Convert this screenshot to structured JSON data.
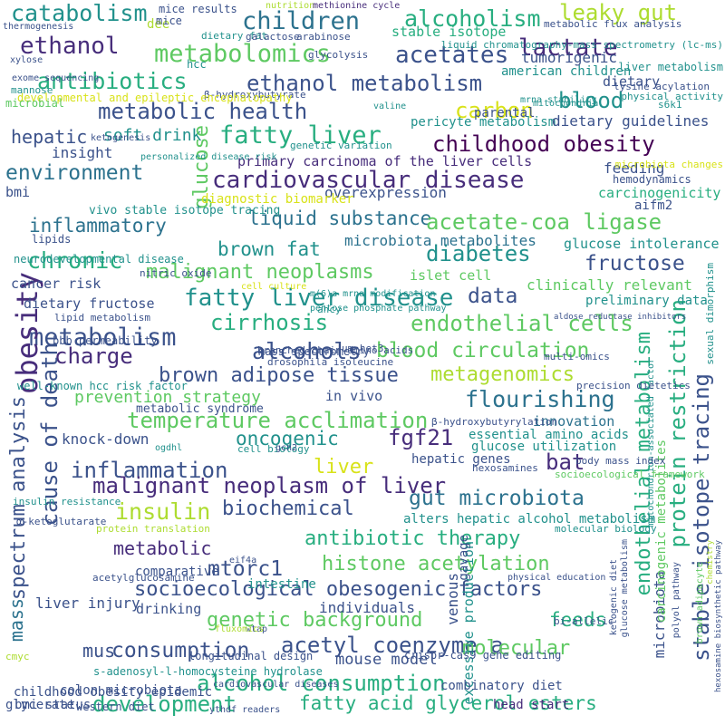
{
  "palette": {
    "yellow": "#d8e219",
    "lime": "#addc30",
    "green": "#5ec962",
    "emerald": "#28ae80",
    "teal": "#21918c",
    "blue": "#2c728e",
    "indigo": "#3b528b",
    "violet": "#472d7b",
    "deep": "#440154"
  },
  "words": [
    {
      "text": "catabolism",
      "color": "teal"
    },
    {
      "text": "mice results",
      "color": "indigo"
    },
    {
      "text": "nutrition",
      "color": "lime"
    },
    {
      "text": "methionine cycle",
      "color": "violet"
    },
    {
      "text": "children",
      "color": "blue"
    },
    {
      "text": "alcoholism",
      "color": "emerald"
    },
    {
      "text": "leaky gut",
      "color": "lime"
    },
    {
      "text": "ethanol",
      "color": "violet"
    },
    {
      "text": "metabolomics",
      "color": "green"
    },
    {
      "text": "acetates",
      "color": "indigo"
    },
    {
      "text": "lactate",
      "color": "violet"
    },
    {
      "text": "antibiotics",
      "color": "emerald"
    },
    {
      "text": "ethanol metabolism",
      "color": "indigo"
    },
    {
      "text": "blood",
      "color": "teal"
    },
    {
      "text": "metabolic health",
      "color": "indigo"
    },
    {
      "text": "carbon",
      "color": "yellow"
    },
    {
      "text": "fatty liver",
      "color": "emerald"
    },
    {
      "text": "hepatic",
      "color": "indigo"
    },
    {
      "text": "soft drink",
      "color": "teal"
    },
    {
      "text": "childhood obesity",
      "color": "deep"
    },
    {
      "text": "environment",
      "color": "blue"
    },
    {
      "text": "cardiovascular disease",
      "color": "violet"
    },
    {
      "text": "primary carcinoma of the liver cells",
      "color": "violet"
    },
    {
      "text": "glucose",
      "color": "green"
    },
    {
      "text": "liquid substance",
      "color": "blue"
    },
    {
      "text": "acetate-coa ligase",
      "color": "green"
    },
    {
      "text": "inflammatory",
      "color": "blue"
    },
    {
      "text": "brown fat",
      "color": "teal"
    },
    {
      "text": "chronic",
      "color": "emerald"
    },
    {
      "text": "diabetes",
      "color": "teal"
    },
    {
      "text": "fructose",
      "color": "indigo"
    },
    {
      "text": "malignant neoplasms",
      "color": "green"
    },
    {
      "text": "fatty liver disease",
      "color": "teal"
    },
    {
      "text": "data",
      "color": "indigo"
    },
    {
      "text": "cirrhosis",
      "color": "emerald"
    },
    {
      "text": "endothelial cells",
      "color": "green"
    },
    {
      "text": "metabolism",
      "color": "indigo"
    },
    {
      "text": "obesity",
      "color": "violet"
    },
    {
      "text": "charge",
      "color": "violet"
    },
    {
      "text": "alcohols",
      "color": "indigo"
    },
    {
      "text": "blood circulation",
      "color": "green"
    },
    {
      "text": "brown adipose tissue",
      "color": "indigo"
    },
    {
      "text": "metagenomics",
      "color": "lime"
    },
    {
      "text": "flourishing",
      "color": "blue"
    },
    {
      "text": "cause of death",
      "color": "indigo"
    },
    {
      "text": "temperature acclimation",
      "color": "green"
    },
    {
      "text": "oncogenic",
      "color": "teal"
    },
    {
      "text": "fgf21",
      "color": "violet"
    },
    {
      "text": "bat",
      "color": "violet"
    },
    {
      "text": "inflammation",
      "color": "indigo"
    },
    {
      "text": "liver",
      "color": "yellow"
    },
    {
      "text": "malignant neoplasm of liver",
      "color": "violet"
    },
    {
      "text": "gut microbiota",
      "color": "blue"
    },
    {
      "text": "insulin",
      "color": "lime"
    },
    {
      "text": "biochemical",
      "color": "indigo"
    },
    {
      "text": "protein restriction",
      "color": "emerald"
    },
    {
      "text": "endothelial metabolism",
      "color": "emerald"
    },
    {
      "text": "stable isotope tracing",
      "color": "indigo"
    },
    {
      "text": "spectrum analysis",
      "color": "indigo"
    },
    {
      "text": "antibiotic therapy",
      "color": "emerald"
    },
    {
      "text": "metabolic",
      "color": "violet"
    },
    {
      "text": "mtorc1",
      "color": "indigo"
    },
    {
      "text": "histone acetylation",
      "color": "green"
    },
    {
      "text": "socioecological obesogenic factors",
      "color": "indigo"
    },
    {
      "text": "genetic background",
      "color": "green"
    },
    {
      "text": "feeds",
      "color": "emerald"
    },
    {
      "text": "acetyl coenzyme a",
      "color": "indigo"
    },
    {
      "text": "consumption",
      "color": "indigo"
    },
    {
      "text": "molecular",
      "color": "green"
    },
    {
      "text": "alcohol consumption",
      "color": "emerald"
    },
    {
      "text": "development",
      "color": "emerald"
    },
    {
      "text": "fatty acid glycerol esters",
      "color": "emerald"
    },
    {
      "text": "mass",
      "color": "blue"
    },
    {
      "text": "mus",
      "color": "indigo"
    },
    {
      "text": "liver injury",
      "color": "indigo"
    },
    {
      "text": "knock-down",
      "color": "indigo"
    },
    {
      "text": "prevention strategy",
      "color": "green"
    },
    {
      "text": "in vivo",
      "color": "indigo"
    },
    {
      "text": "innovation",
      "color": "blue"
    },
    {
      "text": "essential amino acids",
      "color": "teal"
    },
    {
      "text": "glucose utilization",
      "color": "teal"
    },
    {
      "text": "hepatic genes",
      "color": "indigo"
    },
    {
      "text": "stable isotope",
      "color": "emerald"
    },
    {
      "text": "tumorigenic",
      "color": "indigo"
    },
    {
      "text": "american children",
      "color": "teal"
    },
    {
      "text": "dietary",
      "color": "indigo"
    },
    {
      "text": "parental",
      "color": "indigo"
    },
    {
      "text": "pericyte metabolism",
      "color": "teal"
    },
    {
      "text": "dietary guidelines",
      "color": "indigo"
    },
    {
      "text": "insight",
      "color": "indigo"
    },
    {
      "text": "feeding",
      "color": "indigo"
    },
    {
      "text": "overexpression",
      "color": "indigo"
    },
    {
      "text": "carcinogenicity",
      "color": "emerald"
    },
    {
      "text": "aifm2",
      "color": "indigo"
    },
    {
      "text": "microbiota metabolites",
      "color": "blue"
    },
    {
      "text": "islet cell",
      "color": "green"
    },
    {
      "text": "glucose intolerance",
      "color": "teal"
    },
    {
      "text": "clinically relevant",
      "color": "green"
    },
    {
      "text": "preliminary data",
      "color": "teal"
    },
    {
      "text": "cancer risk",
      "color": "indigo"
    },
    {
      "text": "dietary fructose",
      "color": "indigo"
    },
    {
      "text": "comparative",
      "color": "indigo"
    },
    {
      "text": "drinking",
      "color": "indigo"
    },
    {
      "text": "individuals",
      "color": "indigo"
    },
    {
      "text": "intestine",
      "color": "teal"
    },
    {
      "text": "alters hepatic alcohol metabolism",
      "color": "teal"
    },
    {
      "text": "venous",
      "color": "indigo"
    },
    {
      "text": "excessive production",
      "color": "teal"
    },
    {
      "text": "gavage",
      "color": "indigo"
    },
    {
      "text": "microbiota",
      "color": "indigo"
    },
    {
      "text": "carcinogenic metabolites",
      "color": "green"
    },
    {
      "text": "mouse model",
      "color": "indigo"
    },
    {
      "text": "combinatory diet",
      "color": "indigo"
    },
    {
      "text": "head start",
      "color": "violet"
    },
    {
      "text": "colon microbiota",
      "color": "indigo"
    },
    {
      "text": "childhood obesity epidemic",
      "color": "indigo"
    },
    {
      "text": "bmi status",
      "color": "indigo"
    },
    {
      "text": "glycerate",
      "color": "indigo"
    },
    {
      "text": "western diet",
      "color": "indigo"
    },
    {
      "text": "ythdf readers",
      "color": "indigo"
    },
    {
      "text": "cardiovascular diseases",
      "color": "indigo"
    },
    {
      "text": "crispr-cas9 gene editing",
      "color": "indigo"
    },
    {
      "text": "s-adenosyl-l-homocysteine hydrolase",
      "color": "teal"
    },
    {
      "text": "longitudinal design",
      "color": "indigo"
    },
    {
      "text": "bi-allelic",
      "color": "indigo"
    },
    {
      "text": "wtap",
      "color": "indigo"
    },
    {
      "text": "fluxomics",
      "color": "lime"
    },
    {
      "text": "cmyc",
      "color": "lime"
    },
    {
      "text": "acetylglucosamine",
      "color": "indigo"
    },
    {
      "text": "eif4a",
      "color": "indigo"
    },
    {
      "text": "protein translation",
      "color": "lime"
    },
    {
      "text": "molecular biology",
      "color": "teal"
    },
    {
      "text": "physical education",
      "color": "indigo"
    },
    {
      "text": "glucose metabolism",
      "color": "indigo"
    },
    {
      "text": "brown adipocyte",
      "color": "green"
    },
    {
      "text": "polyol pathway",
      "color": "indigo"
    },
    {
      "text": "ketogenic diet",
      "color": "indigo"
    },
    {
      "text": "chemistry",
      "color": "lime"
    },
    {
      "text": "hexosamine biosynthetic pathway",
      "color": "indigo"
    },
    {
      "text": "sexual dimorphism",
      "color": "teal"
    },
    {
      "text": "mitochondrion-associated factor",
      "color": "teal"
    },
    {
      "text": "socioecological framework",
      "color": "green"
    },
    {
      "text": "body mass index",
      "color": "indigo"
    },
    {
      "text": "hexosamines",
      "color": "indigo"
    },
    {
      "text": "precision dietetics",
      "color": "indigo"
    },
    {
      "text": "β-hydroxybutyrylation",
      "color": "indigo"
    },
    {
      "text": "multi-omics",
      "color": "indigo"
    },
    {
      "text": "um-het3",
      "color": "indigo"
    },
    {
      "text": "branched-chain amino acids",
      "color": "indigo"
    },
    {
      "text": "pentose phosphate pathway",
      "color": "teal"
    },
    {
      "text": "m(6)a mrna modification",
      "color": "teal"
    },
    {
      "text": "aldose reductase inhibitors",
      "color": "indigo"
    },
    {
      "text": "ahcy",
      "color": "teal"
    },
    {
      "text": "cell culture",
      "color": "yellow"
    },
    {
      "text": "nitric oxide",
      "color": "indigo"
    },
    {
      "text": "lipids",
      "color": "indigo"
    },
    {
      "text": "bbb permeability",
      "color": "indigo"
    },
    {
      "text": "mass spectrometry",
      "color": "indigo"
    },
    {
      "text": "drosophila isoleucine",
      "color": "indigo"
    },
    {
      "text": "metabolic syndrome",
      "color": "indigo"
    },
    {
      "text": "ogdhl",
      "color": "teal"
    },
    {
      "text": "cell biology",
      "color": "teal"
    },
    {
      "text": "gcn2",
      "color": "indigo"
    },
    {
      "text": "lipid metabolism",
      "color": "indigo"
    },
    {
      "text": "neurodevelopmental disease",
      "color": "teal"
    },
    {
      "text": "well-known hcc risk factor",
      "color": "teal"
    },
    {
      "text": "insulin resistance",
      "color": "teal"
    },
    {
      "text": "α-ketoglutarate",
      "color": "indigo"
    },
    {
      "text": "bmi",
      "color": "indigo"
    },
    {
      "text": "diagnostic biomarker",
      "color": "yellow"
    },
    {
      "text": "vivo stable isotope tracing",
      "color": "teal"
    },
    {
      "text": "microbiota changes",
      "color": "yellow"
    },
    {
      "text": "hemodynamics",
      "color": "indigo"
    },
    {
      "text": "genetic variation",
      "color": "teal"
    },
    {
      "text": "personalized disease risk",
      "color": "teal"
    },
    {
      "text": "ketogenesis",
      "color": "indigo"
    },
    {
      "text": "mrna stability",
      "color": "teal"
    },
    {
      "text": "s6k1",
      "color": "teal"
    },
    {
      "text": "physical activity",
      "color": "teal"
    },
    {
      "text": "lysine acylation",
      "color": "indigo"
    },
    {
      "text": "liver metabolism",
      "color": "teal"
    },
    {
      "text": "mitochondria",
      "color": "teal"
    },
    {
      "text": "valine",
      "color": "teal"
    },
    {
      "text": "β-hydroxybutyrate",
      "color": "indigo"
    },
    {
      "text": "developmental and epileptic encephalopathy",
      "color": "yellow"
    },
    {
      "text": "microbial",
      "color": "green"
    },
    {
      "text": "hcc",
      "color": "teal"
    },
    {
      "text": "liquid chromatography-mass spectrometry (lc-ms)",
      "color": "teal"
    },
    {
      "text": "glycolysis",
      "color": "indigo"
    },
    {
      "text": "xylose",
      "color": "indigo"
    },
    {
      "text": "exome sequencing",
      "color": "indigo"
    },
    {
      "text": "mannose",
      "color": "teal"
    },
    {
      "text": "dee",
      "color": "lime"
    },
    {
      "text": "mice",
      "color": "indigo"
    },
    {
      "text": "dietary fat",
      "color": "teal"
    },
    {
      "text": "galactose",
      "color": "indigo"
    },
    {
      "text": "arabinose",
      "color": "indigo"
    },
    {
      "text": "thermogenesis",
      "color": "indigo"
    },
    {
      "text": "metabolic flux analysis",
      "color": "indigo"
    },
    {
      "text": "mxd2",
      "color": "teal"
    }
  ]
}
